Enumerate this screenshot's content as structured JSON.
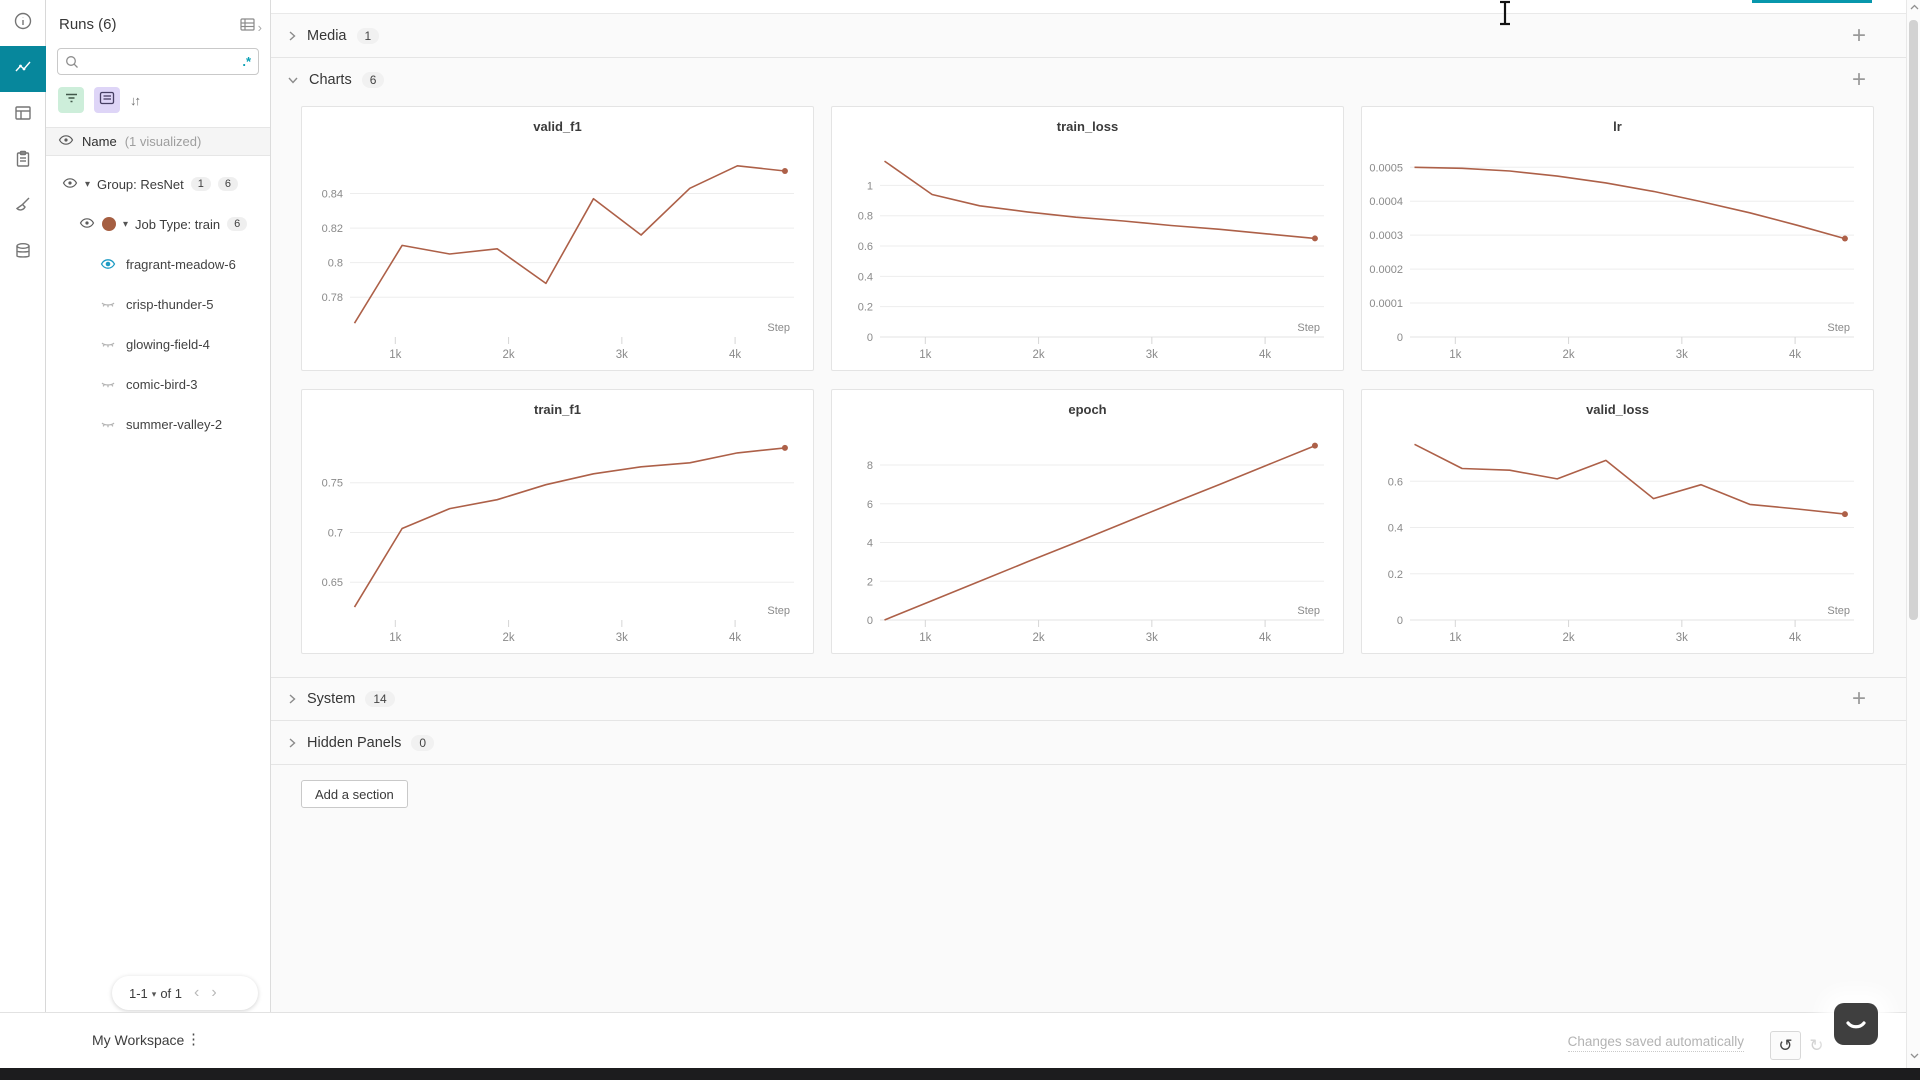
{
  "colors": {
    "accent_teal": "#07879c",
    "run_line": "#ad6048",
    "job_dot": "#a55e41",
    "visible_eye_blue": "#1d9bc4",
    "filter_button_bg": "#cdeeda",
    "list_button_bg": "#ded5f7"
  },
  "nav_rail": {
    "items": [
      "info-icon",
      "line-chart-icon",
      "panels-icon",
      "reports-icon",
      "sweeps-icon",
      "artifacts-icon"
    ],
    "active_index": 1
  },
  "sidebar": {
    "title": "Runs (6)",
    "search": {
      "placeholder": "",
      "regex_icon": ".*"
    },
    "header_row": {
      "label": "Name",
      "annotation": "(1 visualized)"
    },
    "tree": {
      "group": {
        "label": "Group: ResNet",
        "badges": [
          "1",
          "6"
        ]
      },
      "job": {
        "label": "Job Type: train",
        "badge": "6"
      },
      "runs": [
        {
          "name": "fragrant-meadow-6",
          "visualized": true
        },
        {
          "name": "crisp-thunder-5",
          "visualized": false
        },
        {
          "name": "glowing-field-4",
          "visualized": false
        },
        {
          "name": "comic-bird-3",
          "visualized": false
        },
        {
          "name": "summer-valley-2",
          "visualized": false
        }
      ]
    },
    "pagination": {
      "page_label": "1-1",
      "of_label": "of 1"
    }
  },
  "main": {
    "sections": {
      "media": {
        "label": "Media",
        "count": "1"
      },
      "charts": {
        "label": "Charts",
        "count": "6"
      },
      "system": {
        "label": "System",
        "count": "14"
      },
      "hidden": {
        "label": "Hidden Panels",
        "count": "0"
      }
    },
    "add_section_label": "Add a section"
  },
  "chart_data": [
    {
      "type": "line",
      "title": "valid_f1",
      "xlabel": "Step",
      "x": [
        640,
        1060,
        1480,
        1900,
        2330,
        2750,
        3170,
        3600,
        4020,
        4440
      ],
      "values": [
        0.765,
        0.81,
        0.805,
        0.808,
        0.788,
        0.837,
        0.816,
        0.843,
        0.856,
        0.853
      ],
      "yticks": [
        0.78,
        0.8,
        0.82,
        0.84
      ],
      "ytick_labels": [
        "0.78",
        "0.8",
        "0.82",
        "0.84"
      ],
      "xticks": [
        1000,
        2000,
        3000,
        4000
      ],
      "xtick_labels": [
        "1k",
        "2k",
        "3k",
        "4k"
      ],
      "ylim": [
        0.757,
        0.864
      ],
      "xlim": [
        600,
        4520
      ],
      "color": "#ad6048",
      "grid": true
    },
    {
      "type": "line",
      "title": "train_loss",
      "xlabel": "Step",
      "x": [
        640,
        1060,
        1480,
        1900,
        2330,
        2750,
        3170,
        3600,
        4020,
        4440
      ],
      "values": [
        1.16,
        0.94,
        0.865,
        0.825,
        0.79,
        0.765,
        0.735,
        0.71,
        0.68,
        0.65
      ],
      "yticks": [
        0,
        0.2,
        0.4,
        0.6,
        0.8,
        1
      ],
      "ytick_labels": [
        "0",
        "0.2",
        "0.4",
        "0.6",
        "0.8",
        "1"
      ],
      "xticks": [
        1000,
        2000,
        3000,
        4000
      ],
      "xtick_labels": [
        "1k",
        "2k",
        "3k",
        "4k"
      ],
      "ylim": [
        0,
        1.22
      ],
      "xlim": [
        600,
        4520
      ],
      "color": "#ad6048",
      "grid": true
    },
    {
      "type": "line",
      "title": "lr",
      "xlabel": "Step",
      "x": [
        640,
        1060,
        1480,
        1900,
        2330,
        2750,
        3170,
        3600,
        4020,
        4440
      ],
      "values": [
        0.0005,
        0.000497,
        0.000489,
        0.000474,
        0.000454,
        0.000429,
        0.000399,
        0.000366,
        0.000329,
        0.00029
      ],
      "yticks": [
        0,
        0.0001,
        0.0002,
        0.0003,
        0.0004,
        0.0005
      ],
      "ytick_labels": [
        "0",
        "0.0001",
        "0.0002",
        "0.0003",
        "0.0004",
        "0.0005"
      ],
      "xticks": [
        1000,
        2000,
        3000,
        4000
      ],
      "xtick_labels": [
        "1k",
        "2k",
        "3k",
        "4k"
      ],
      "ylim": [
        0,
        0.000545
      ],
      "xlim": [
        600,
        4520
      ],
      "color": "#ad6048",
      "grid": true
    },
    {
      "type": "line",
      "title": "train_f1",
      "xlabel": "Step",
      "x": [
        640,
        1060,
        1480,
        1900,
        2330,
        2750,
        3170,
        3600,
        4020,
        4440
      ],
      "values": [
        0.625,
        0.704,
        0.724,
        0.733,
        0.748,
        0.759,
        0.766,
        0.77,
        0.78,
        0.785
      ],
      "yticks": [
        0.65,
        0.7,
        0.75
      ],
      "ytick_labels": [
        "0.65",
        "0.7",
        "0.75"
      ],
      "xticks": [
        1000,
        2000,
        3000,
        4000
      ],
      "xtick_labels": [
        "1k",
        "2k",
        "3k",
        "4k"
      ],
      "ylim": [
        0.612,
        0.798
      ],
      "xlim": [
        600,
        4520
      ],
      "color": "#ad6048",
      "grid": true
    },
    {
      "type": "line",
      "title": "epoch",
      "xlabel": "Step",
      "x": [
        640,
        1060,
        1480,
        1900,
        2330,
        2750,
        3170,
        3600,
        4020,
        4440
      ],
      "values": [
        0,
        1,
        2,
        3,
        4,
        5,
        6,
        7,
        8,
        9
      ],
      "yticks": [
        0,
        2,
        4,
        6,
        8
      ],
      "ytick_labels": [
        "0",
        "2",
        "4",
        "6",
        "8"
      ],
      "xticks": [
        1000,
        2000,
        3000,
        4000
      ],
      "xtick_labels": [
        "1k",
        "2k",
        "3k",
        "4k"
      ],
      "ylim": [
        0,
        9.55
      ],
      "xlim": [
        600,
        4520
      ],
      "color": "#ad6048",
      "grid": true
    },
    {
      "type": "line",
      "title": "valid_loss",
      "xlabel": "Step",
      "x": [
        640,
        1060,
        1480,
        1900,
        2330,
        2750,
        3170,
        3600,
        4020,
        4440
      ],
      "values": [
        0.76,
        0.655,
        0.648,
        0.61,
        0.69,
        0.525,
        0.585,
        0.5,
        0.48,
        0.458
      ],
      "yticks": [
        0,
        0.2,
        0.4,
        0.6
      ],
      "ytick_labels": [
        "0",
        "0.2",
        "0.4",
        "0.6"
      ],
      "xticks": [
        1000,
        2000,
        3000,
        4000
      ],
      "xtick_labels": [
        "1k",
        "2k",
        "3k",
        "4k"
      ],
      "ylim": [
        0,
        0.8
      ],
      "xlim": [
        600,
        4520
      ],
      "color": "#ad6048",
      "grid": true
    }
  ],
  "footer": {
    "workspace_label": "My Workspace",
    "status": "Changes saved automatically"
  }
}
